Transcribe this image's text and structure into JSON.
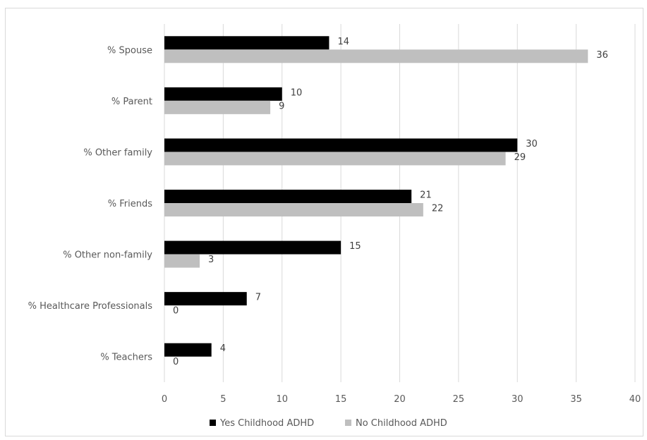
{
  "chart_data": {
    "type": "bar",
    "orientation": "horizontal",
    "title": "",
    "xlabel": "",
    "ylabel": "",
    "categories": [
      "% Spouse",
      "% Parent",
      "% Other family",
      "% Friends",
      "% Other non-family",
      "% Healthcare Professionals",
      "% Teachers"
    ],
    "series": [
      {
        "name": "Yes Childhood ADHD",
        "color": "#000000",
        "values": [
          14,
          10,
          30,
          21,
          15,
          7,
          4
        ]
      },
      {
        "name": "No Childhood ADHD",
        "color": "#bfbfbf",
        "values": [
          36,
          9,
          29,
          22,
          3,
          0,
          0
        ]
      }
    ],
    "xlim": [
      0,
      40
    ],
    "xticks": [
      "0",
      "5",
      "10",
      "15",
      "20",
      "25",
      "30",
      "35",
      "40"
    ],
    "grid": true,
    "legend": "bottom",
    "data_labels": true
  }
}
